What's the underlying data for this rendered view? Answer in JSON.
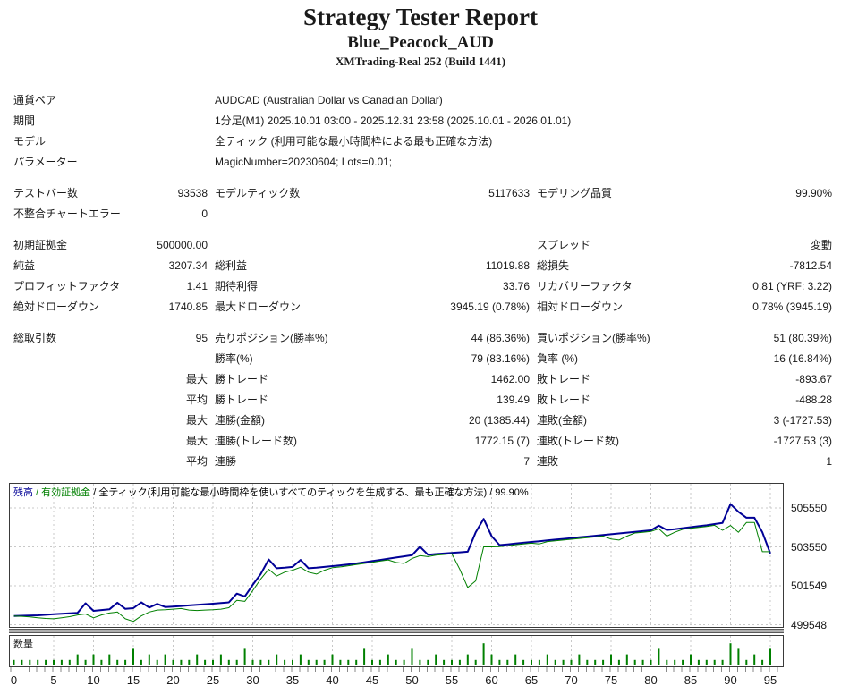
{
  "header": {
    "title": "Strategy Tester Report",
    "subtitle": "Blue_Peacock_AUD",
    "server": "XMTrading-Real 252 (Build 1441)"
  },
  "report": {
    "sections": [
      {
        "rows": [
          [
            "通貨ペア",
            "AUDCAD (Australian Dollar vs Canadian Dollar)"
          ],
          [
            "期間",
            "1分足(M1) 2025.10.01 03:00 - 2025.12.31 23:58 (2025.10.01 - 2026.01.01)"
          ],
          [
            "モデル",
            "全ティック (利用可能な最小時間枠による最も正確な方法)"
          ],
          [
            "パラメーター",
            "MagicNumber=20230604; Lots=0.01;"
          ]
        ]
      },
      {
        "rows": [
          [
            "テストバー数",
            "93538",
            "モデルティック数",
            "5117633",
            "モデリング品質",
            "99.90%"
          ],
          [
            "不整合チャートエラー",
            "0",
            "",
            "",
            "",
            ""
          ]
        ]
      },
      {
        "rows": [
          [
            "初期証拠金",
            "500000.00",
            "",
            "",
            "スプレッド",
            "変動"
          ],
          [
            "純益",
            "3207.34",
            "総利益",
            "11019.88",
            "総損失",
            "-7812.54"
          ],
          [
            "プロフィットファクタ",
            "1.41",
            "期待利得",
            "33.76",
            "リカバリーファクタ",
            "0.81 (YRF: 3.22)"
          ],
          [
            "絶対ドローダウン",
            "1740.85",
            "最大ドローダウン",
            "3945.19 (0.78%)",
            "相対ドローダウン",
            "0.78% (3945.19)"
          ]
        ]
      },
      {
        "rows": [
          [
            "総取引数",
            "95",
            "売りポジション(勝率%)",
            "44 (86.36%)",
            "買いポジション(勝率%)",
            "51 (80.39%)"
          ],
          [
            "",
            "",
            "勝率(%)",
            "79 (83.16%)",
            "負率 (%)",
            "16 (16.84%)"
          ],
          [
            "",
            "最大",
            "勝トレード",
            "1462.00",
            "敗トレード",
            "-893.67"
          ],
          [
            "",
            "平均",
            "勝トレード",
            "139.49",
            "敗トレード",
            "-488.28"
          ],
          [
            "",
            "最大",
            "連勝(金額)",
            "20 (1385.44)",
            "連敗(金額)",
            "3 (-1727.53)"
          ],
          [
            "",
            "最大",
            "連勝(トレード数)",
            "1772.15 (7)",
            "連敗(トレード数)",
            "-1727.53 (3)"
          ],
          [
            "",
            "平均",
            "連勝",
            "7",
            "連敗",
            "1"
          ]
        ]
      }
    ]
  },
  "chart_data": {
    "type": "line",
    "legend": {
      "balance_label": "残高",
      "sep1": " / ",
      "equity_label": "有効証拠金",
      "rest": " / 全ティック(利用可能な最小時間枠を使いすべてのティックを生成する、最も正確な方法) / 99.90%",
      "balance_color": "#000096",
      "equity_color": "#008000",
      "text_color": "#000000"
    },
    "grid_color": "#c8c8c8",
    "xlabel": "",
    "ylabel": "",
    "x_range": [
      0,
      97
    ],
    "xticks": [
      0,
      5,
      10,
      15,
      20,
      25,
      30,
      35,
      40,
      45,
      50,
      55,
      60,
      65,
      70,
      75,
      80,
      85,
      90,
      95
    ],
    "yticks": [
      {
        "label": "505550",
        "value": 505550
      },
      {
        "label": "503550",
        "value": 503550
      },
      {
        "label": "501549",
        "value": 501549
      },
      {
        "label": "499548",
        "value": 499548
      }
    ],
    "series": [
      {
        "name": "残高",
        "color": "#000096",
        "width": 2,
        "values": [
          500000,
          500010,
          500020,
          500030,
          500060,
          500090,
          500110,
          500130,
          500160,
          500650,
          500260,
          500300,
          500340,
          500680,
          500360,
          500400,
          500700,
          500430,
          500620,
          500460,
          500480,
          500510,
          500540,
          500570,
          500600,
          500630,
          500660,
          500700,
          501150,
          501000,
          501600,
          502150,
          502900,
          502450,
          502480,
          502520,
          502880,
          502450,
          502480,
          502520,
          502560,
          502600,
          502650,
          502700,
          502760,
          502820,
          502880,
          502940,
          503000,
          503060,
          503120,
          503560,
          503150,
          503180,
          503210,
          503240,
          503270,
          503300,
          504300,
          504990,
          504100,
          503640,
          503680,
          503720,
          503760,
          503800,
          503840,
          503880,
          503920,
          503960,
          504000,
          504040,
          504080,
          504120,
          504160,
          504200,
          504240,
          504280,
          504320,
          504360,
          504400,
          504640,
          504420,
          504460,
          504510,
          504560,
          504610,
          504660,
          504720,
          504780,
          505750,
          505350,
          505050,
          505050,
          504300,
          503207
        ]
      },
      {
        "name": "有効証拠金",
        "color": "#008000",
        "width": 1,
        "values": [
          500000,
          499980,
          499950,
          499900,
          499870,
          499850,
          499900,
          499960,
          500050,
          500100,
          499900,
          500050,
          500150,
          500200,
          499850,
          499720,
          500000,
          500200,
          500300,
          500320,
          500350,
          500380,
          500300,
          500280,
          500300,
          500320,
          500350,
          500420,
          500800,
          500750,
          501300,
          501900,
          502400,
          502050,
          502250,
          502350,
          502500,
          502250,
          502150,
          502350,
          502480,
          502520,
          502580,
          502640,
          502700,
          502760,
          502820,
          502880,
          502750,
          502700,
          502950,
          503100,
          503050,
          503120,
          503160,
          503200,
          502400,
          501460,
          501800,
          503550,
          503550,
          503560,
          503600,
          503660,
          503700,
          503740,
          503700,
          503820,
          503860,
          503900,
          503940,
          503980,
          504020,
          504060,
          504100,
          503950,
          503900,
          504100,
          504260,
          504300,
          504340,
          504480,
          504100,
          504300,
          504450,
          504500,
          504550,
          504600,
          504660,
          504400,
          504650,
          504300,
          504800,
          504800,
          503300,
          503300
        ]
      }
    ],
    "volume": {
      "label": "数量",
      "color": "#008000",
      "values": [
        1,
        1,
        1,
        1,
        1,
        1,
        1,
        1,
        2,
        1,
        2,
        1,
        2,
        1,
        1,
        3,
        1,
        2,
        1,
        2,
        1,
        1,
        1,
        2,
        1,
        1,
        2,
        1,
        1,
        3,
        1,
        1,
        1,
        2,
        1,
        1,
        2,
        1,
        1,
        1,
        2,
        1,
        1,
        1,
        3,
        1,
        1,
        2,
        1,
        1,
        3,
        1,
        1,
        2,
        1,
        1,
        1,
        2,
        1,
        4,
        2,
        1,
        1,
        2,
        1,
        1,
        1,
        2,
        1,
        1,
        1,
        2,
        1,
        1,
        1,
        2,
        1,
        2,
        1,
        1,
        1,
        3,
        1,
        1,
        1,
        2,
        1,
        1,
        1,
        1,
        4,
        3,
        1,
        2,
        1,
        3
      ]
    }
  }
}
